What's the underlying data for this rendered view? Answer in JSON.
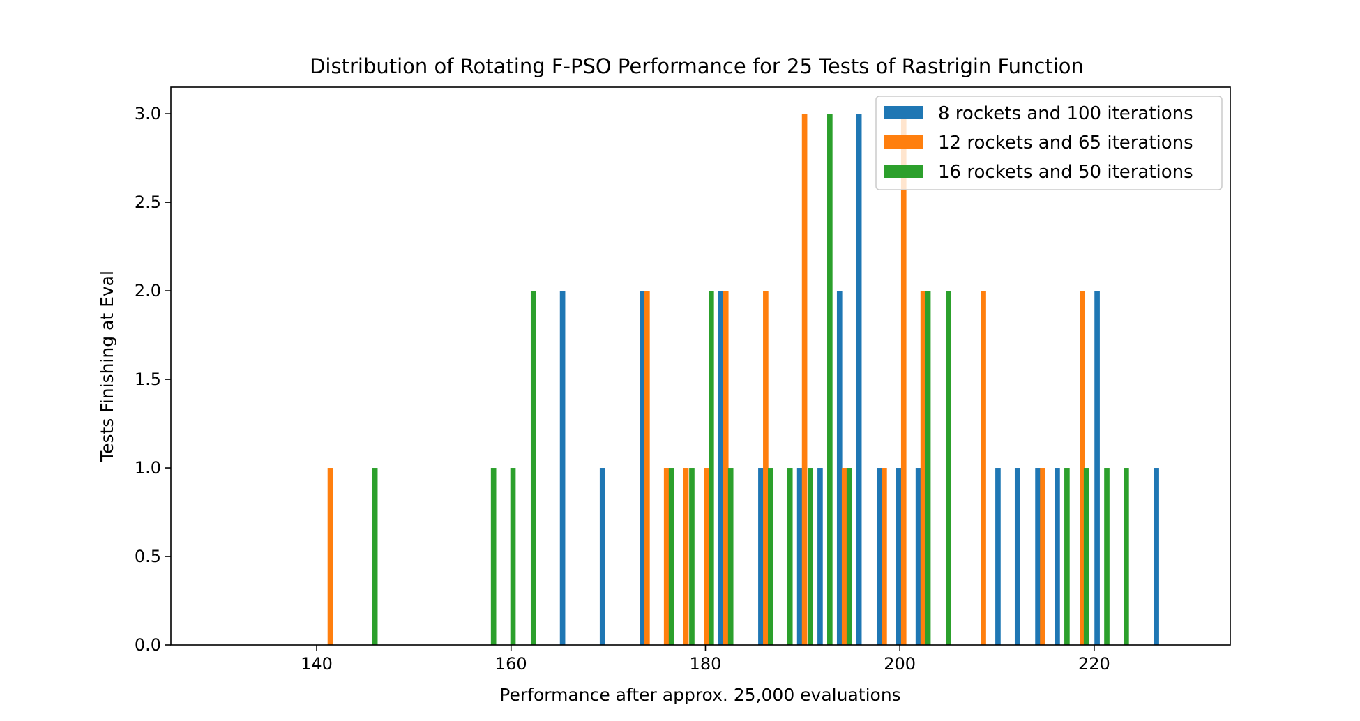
{
  "chart_data": {
    "type": "bar",
    "title": "Distribution of Rotating F-PSO Performance for 25 Tests of Rastrigin Function",
    "xlabel": "Performance after approx. 25,000 evaluations",
    "ylabel": "Tests Finishing at Eval",
    "xlim": [
      125,
      234
    ],
    "ylim": [
      0,
      3.15
    ],
    "xticks": [
      140,
      160,
      180,
      200,
      220
    ],
    "yticks": [
      0.0,
      0.5,
      1.0,
      1.5,
      2.0,
      2.5,
      3.0
    ],
    "xtick_labels": [
      "140",
      "160",
      "180",
      "200",
      "220"
    ],
    "ytick_labels": [
      "0.0",
      "0.5",
      "1.0",
      "1.5",
      "2.0",
      "2.5",
      "3.0"
    ],
    "grid": false,
    "legend_position": "top-right",
    "bar_width": 0.55,
    "series": [
      {
        "name": "8 rockets and 100 iterations",
        "color": "#1f77b4",
        "x": [
          165.3,
          169.4,
          173.5,
          181.6,
          185.7,
          189.7,
          191.8,
          193.8,
          195.8,
          197.9,
          199.9,
          201.9,
          210.1,
          212.1,
          214.2,
          216.2,
          220.3,
          226.4
        ],
        "values": [
          2,
          1,
          2,
          2,
          1,
          1,
          1,
          2,
          3,
          1,
          1,
          1,
          1,
          1,
          1,
          1,
          2,
          1
        ]
      },
      {
        "name": "12 rockets and 65 iterations",
        "color": "#ff7f0e",
        "x": [
          141.4,
          174.0,
          176.0,
          178.0,
          180.1,
          182.1,
          186.2,
          190.2,
          194.3,
          198.4,
          200.4,
          202.4,
          208.6,
          214.7,
          218.8
        ],
        "values": [
          1,
          2,
          1,
          1,
          1,
          2,
          2,
          3,
          1,
          1,
          3,
          2,
          2,
          1,
          2
        ]
      },
      {
        "name": "16 rockets and 50 iterations",
        "color": "#2ca02c",
        "x": [
          146.0,
          158.2,
          160.2,
          162.3,
          176.5,
          178.6,
          180.6,
          182.6,
          186.7,
          188.7,
          190.8,
          192.8,
          194.8,
          202.9,
          205.0,
          217.2,
          219.2,
          221.3,
          223.3
        ],
        "values": [
          1,
          1,
          1,
          2,
          1,
          1,
          2,
          1,
          1,
          1,
          1,
          3,
          1,
          2,
          2,
          1,
          1,
          1,
          1
        ]
      }
    ]
  }
}
